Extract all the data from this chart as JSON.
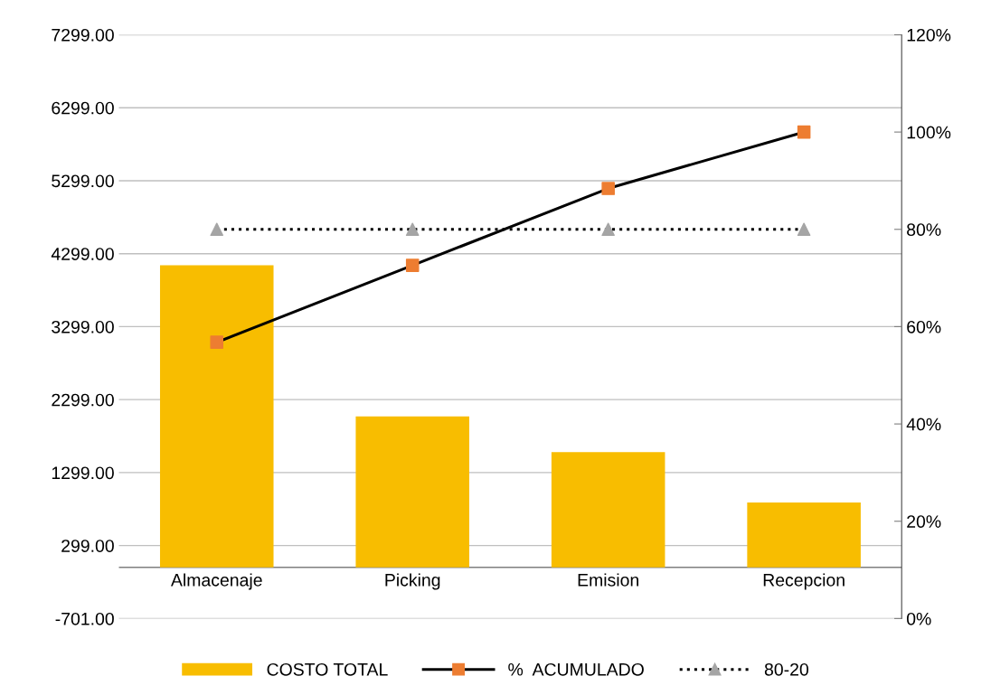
{
  "chart_data": {
    "type": "bar",
    "categories": [
      "Almacenaje",
      "Picking",
      "Emision",
      "Recepcion"
    ],
    "series": [
      {
        "name": "COSTO TOTAL",
        "color": "#f8bd00",
        "values": [
          4140,
          2070,
          1580,
          890
        ]
      },
      {
        "name": "%  ACUMULADO",
        "type": "line",
        "axis": "y2",
        "color": "#000000",
        "colors": [
          "#ed7d31",
          "#ed7d31",
          "#ed7d31",
          "#ed7d31"
        ],
        "marker": "square",
        "line_style": "solid",
        "values": [
          56.8,
          72.6,
          88.4,
          100
        ]
      },
      {
        "name": "80-20",
        "type": "line",
        "axis": "y2",
        "color": "#000000",
        "colors": [
          "#a5a5a5",
          "#a5a5a5",
          "#a5a5a5",
          "#a5a5a5"
        ],
        "marker": "triangle",
        "line_style": "dotted",
        "values": [
          80,
          80,
          80,
          80
        ]
      }
    ],
    "ylim": [
      -701,
      7299
    ],
    "yticks": [
      {
        "value": -701,
        "label": "-701.00"
      },
      {
        "value": 299,
        "label": "299.00"
      },
      {
        "value": 1299,
        "label": "1299.00"
      },
      {
        "value": 2299,
        "label": "2299.00"
      },
      {
        "value": 3299,
        "label": "3299.00"
      },
      {
        "value": 4299,
        "label": "4299.00"
      },
      {
        "value": 5299,
        "label": "5299.00"
      },
      {
        "value": 6299,
        "label": "6299.00"
      },
      {
        "value": 7299,
        "label": "7299.00"
      }
    ],
    "y2lim": [
      0,
      120
    ],
    "y2ticks": [
      {
        "value": 0,
        "label": "0%"
      },
      {
        "value": 20,
        "label": "20%"
      },
      {
        "value": 40,
        "label": "40%"
      },
      {
        "value": 60,
        "label": "60%"
      },
      {
        "value": 80,
        "label": "80%"
      },
      {
        "value": 100,
        "label": "100%"
      },
      {
        "value": 120,
        "label": "120%"
      }
    ],
    "grid": "y",
    "legend": "bottom"
  }
}
